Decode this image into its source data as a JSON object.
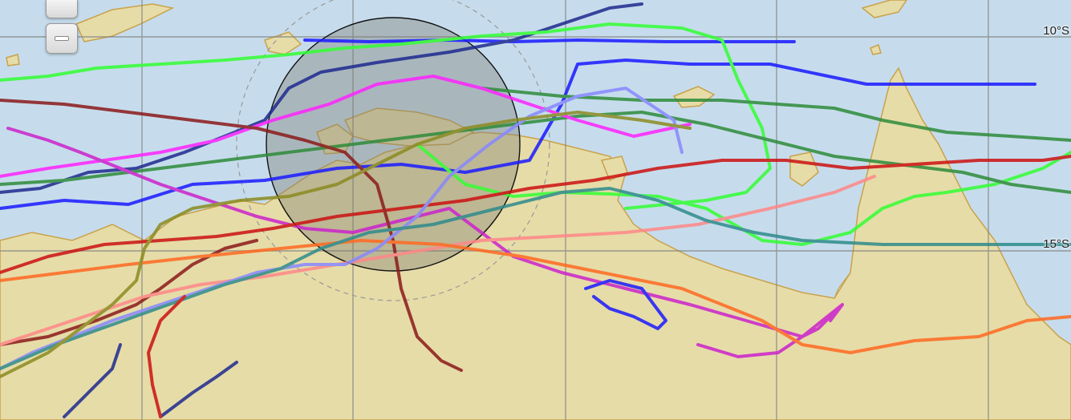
{
  "map": {
    "lat_labels": {
      "north": "10°S",
      "south": "15°S"
    },
    "controls": {
      "zoom_in_icon": "plus-icon",
      "zoom_out_icon": "minus-icon"
    },
    "colors": {
      "ocean": "#c6dcec",
      "land": "#e6dca8",
      "coast": "#c9a24b",
      "grid": "#808080",
      "circle_fill": "#7c7c70",
      "track_palette": [
        "#1a1aff",
        "#1f2a8f",
        "#33ff33",
        "#2e8b3a",
        "#ff22ff",
        "#cc22cc",
        "#cc1111",
        "#8b1a1a",
        "#ff8888",
        "#ff6a22",
        "#8888ff",
        "#2e8b8b",
        "#8b8b22"
      ]
    }
  }
}
